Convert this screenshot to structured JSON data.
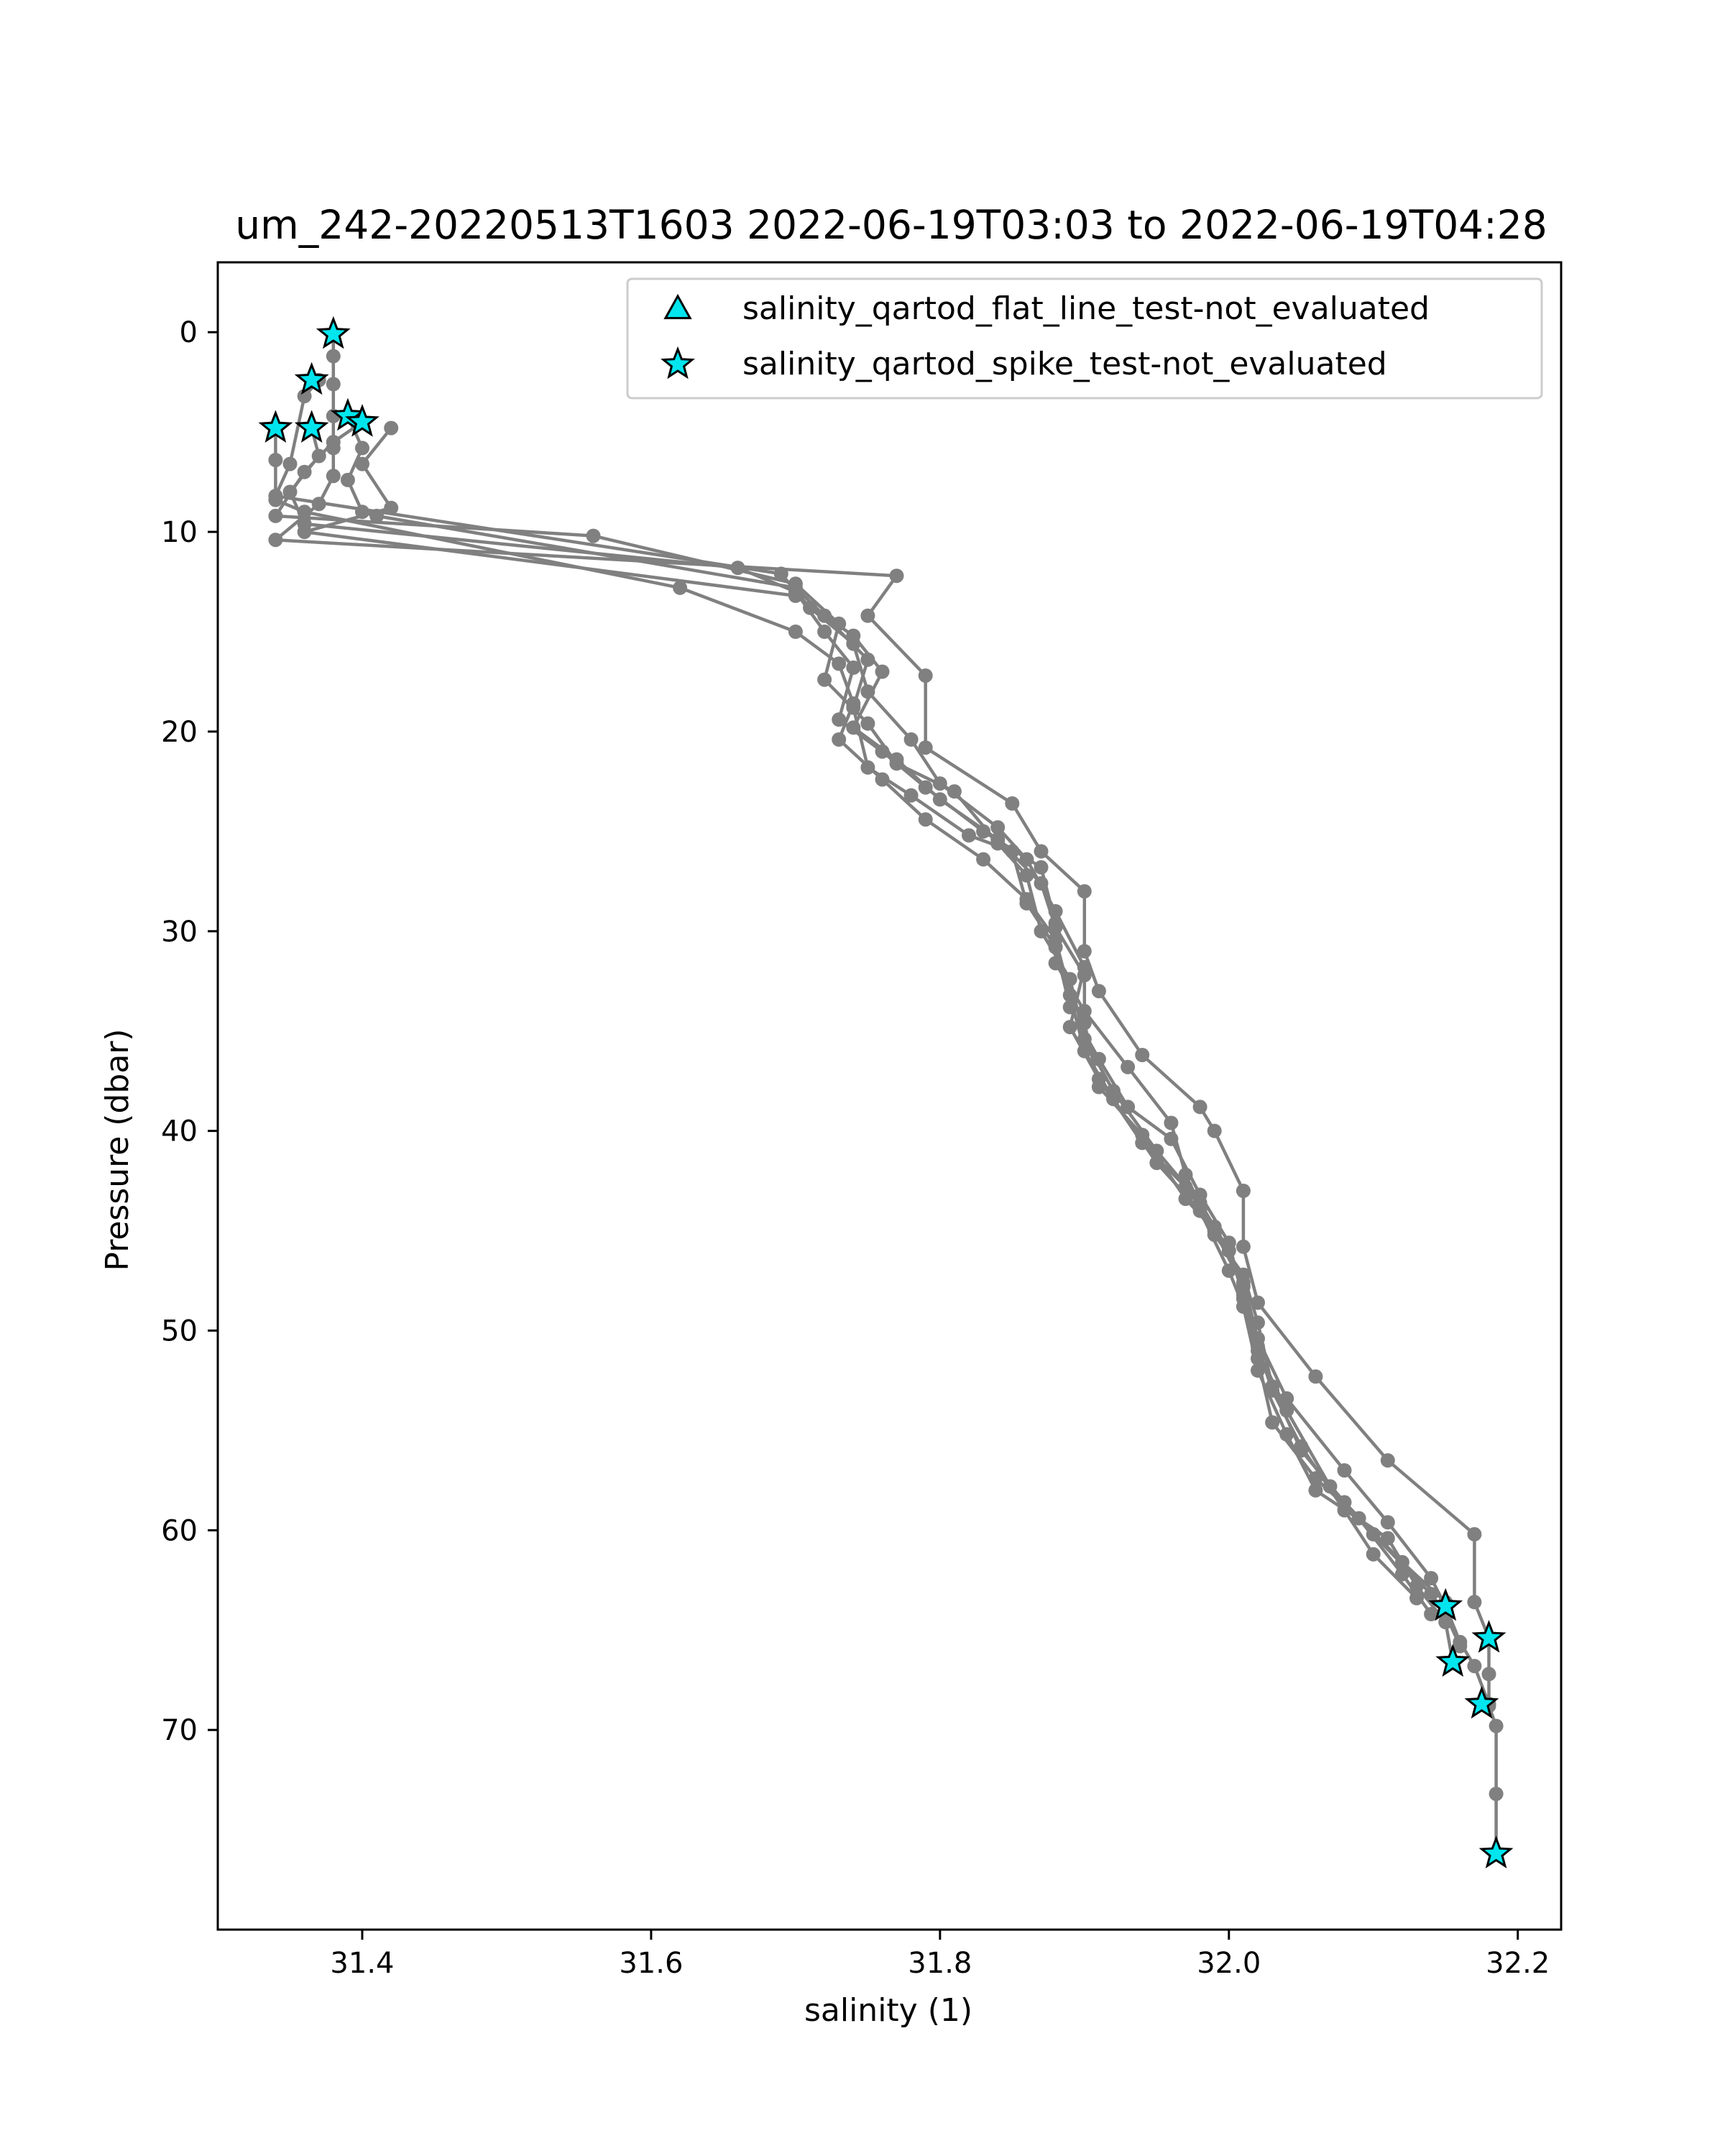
{
  "chart_data": {
    "type": "scatter",
    "title": "um_242-20220513T1603 2022-06-19T03:03 to 2022-06-19T04:28",
    "xlabel": "salinity (1)",
    "ylabel": "Pressure (dbar)",
    "xlim": [
      31.3,
      32.23
    ],
    "ylim": [
      80,
      -3.5
    ],
    "y_inverted": true,
    "xticks": [
      "31.4",
      "31.6",
      "31.8",
      "32.0",
      "32.2"
    ],
    "xtick_values": [
      31.4,
      31.6,
      31.8,
      32.0,
      32.2
    ],
    "yticks": [
      "0",
      "10",
      "20",
      "30",
      "40",
      "50",
      "60",
      "70"
    ],
    "ytick_values": [
      0,
      10,
      20,
      30,
      40,
      50,
      60,
      70
    ],
    "grid": false,
    "legend_position": "top-right",
    "colors": {
      "profile_line": "#808080",
      "marker_fill": "#00e5ee",
      "marker_edge": "#000000"
    },
    "profiles": [
      {
        "points": [
          [
            31.38,
            0.1
          ],
          [
            31.38,
            1.2
          ],
          [
            31.38,
            2.6
          ],
          [
            31.38,
            4.2
          ],
          [
            31.38,
            5.8
          ],
          [
            31.38,
            7.2
          ],
          [
            31.37,
            8.6
          ],
          [
            31.34,
            10.4
          ],
          [
            31.77,
            12.2
          ],
          [
            31.75,
            14.2
          ],
          [
            31.79,
            17.2
          ],
          [
            31.79,
            20.8
          ],
          [
            31.85,
            23.6
          ],
          [
            31.87,
            26.0
          ],
          [
            31.9,
            28.0
          ],
          [
            31.9,
            31.0
          ],
          [
            31.91,
            33.0
          ],
          [
            31.94,
            36.2
          ],
          [
            31.98,
            38.8
          ],
          [
            31.99,
            40.0
          ],
          [
            32.01,
            43.0
          ],
          [
            32.01,
            45.8
          ],
          [
            32.02,
            48.6
          ],
          [
            32.06,
            52.3
          ],
          [
            32.11,
            56.5
          ],
          [
            32.17,
            60.2
          ],
          [
            32.17,
            63.6
          ],
          [
            32.18,
            65.4
          ],
          [
            32.18,
            67.2
          ],
          [
            32.18,
            68.8
          ],
          [
            32.185,
            69.8
          ],
          [
            32.185,
            73.2
          ],
          [
            32.185,
            76.2
          ]
        ]
      },
      {
        "points": [
          [
            31.37,
            2.4
          ],
          [
            31.36,
            3.2
          ],
          [
            31.35,
            6.6
          ],
          [
            31.34,
            8.2
          ],
          [
            31.69,
            12.1
          ],
          [
            31.71,
            13.8
          ],
          [
            31.74,
            15.6
          ],
          [
            31.75,
            18.0
          ],
          [
            31.78,
            20.4
          ],
          [
            31.8,
            22.6
          ],
          [
            31.84,
            24.8
          ],
          [
            31.86,
            26.4
          ],
          [
            31.88,
            29.0
          ],
          [
            31.9,
            31.8
          ],
          [
            31.89,
            34.8
          ],
          [
            31.91,
            37.4
          ],
          [
            31.94,
            40.6
          ],
          [
            31.97,
            42.8
          ],
          [
            31.99,
            44.8
          ],
          [
            32.01,
            47.6
          ],
          [
            32.02,
            50.4
          ],
          [
            32.04,
            53.4
          ],
          [
            32.08,
            57.0
          ],
          [
            32.11,
            59.6
          ],
          [
            32.14,
            62.4
          ],
          [
            32.15,
            63.8
          ],
          [
            32.16,
            65.6
          ],
          [
            32.17,
            66.8
          ],
          [
            32.18,
            68.7
          ]
        ]
      },
      {
        "points": [
          [
            31.4,
            4.5
          ],
          [
            31.38,
            5.5
          ],
          [
            31.36,
            7.0
          ],
          [
            31.34,
            9.2
          ],
          [
            31.56,
            10.2
          ],
          [
            31.7,
            12.6
          ],
          [
            31.73,
            14.6
          ],
          [
            31.72,
            17.4
          ],
          [
            31.75,
            19.6
          ],
          [
            31.77,
            21.6
          ],
          [
            31.81,
            23.0
          ],
          [
            31.84,
            25.6
          ],
          [
            31.86,
            27.2
          ],
          [
            31.87,
            30.0
          ],
          [
            31.89,
            32.4
          ],
          [
            31.9,
            35.4
          ],
          [
            31.92,
            38.0
          ],
          [
            31.95,
            41.0
          ],
          [
            31.98,
            43.6
          ],
          [
            32.0,
            46.0
          ],
          [
            32.01,
            48.2
          ],
          [
            32.02,
            51.0
          ],
          [
            32.04,
            54.0
          ],
          [
            32.07,
            57.8
          ],
          [
            32.1,
            60.2
          ],
          [
            32.14,
            63.2
          ],
          [
            32.15,
            64.2
          ],
          [
            32.16,
            65.8
          ]
        ]
      },
      {
        "points": [
          [
            31.365,
            4.8
          ],
          [
            31.37,
            6.2
          ],
          [
            31.35,
            8.0
          ],
          [
            31.36,
            9.6
          ],
          [
            31.66,
            11.8
          ],
          [
            31.7,
            13.0
          ],
          [
            31.72,
            15.0
          ],
          [
            31.74,
            16.8
          ],
          [
            31.73,
            19.4
          ],
          [
            31.76,
            21.0
          ],
          [
            31.79,
            22.8
          ],
          [
            31.83,
            25.0
          ],
          [
            31.87,
            26.8
          ],
          [
            31.88,
            29.6
          ],
          [
            31.88,
            31.6
          ],
          [
            31.9,
            34.0
          ],
          [
            31.93,
            36.8
          ],
          [
            31.96,
            39.6
          ],
          [
            31.97,
            42.2
          ],
          [
            31.99,
            45.2
          ],
          [
            32.01,
            47.2
          ],
          [
            32.02,
            49.6
          ],
          [
            32.03,
            52.8
          ],
          [
            32.05,
            56.0
          ],
          [
            32.08,
            58.6
          ],
          [
            32.12,
            61.6
          ],
          [
            32.15,
            63.6
          ]
        ]
      },
      {
        "points": [
          [
            31.34,
            4.8
          ],
          [
            31.34,
            6.4
          ],
          [
            31.34,
            8.4
          ],
          [
            31.36,
            9.0
          ],
          [
            31.62,
            12.8
          ],
          [
            31.7,
            15.0
          ],
          [
            31.73,
            16.6
          ],
          [
            31.74,
            18.6
          ],
          [
            31.73,
            20.4
          ],
          [
            31.76,
            22.4
          ],
          [
            31.79,
            24.4
          ],
          [
            31.83,
            26.4
          ],
          [
            31.86,
            28.4
          ],
          [
            31.88,
            30.4
          ],
          [
            31.89,
            33.2
          ],
          [
            31.9,
            36.0
          ],
          [
            31.92,
            38.4
          ],
          [
            31.95,
            41.6
          ],
          [
            31.98,
            44.0
          ],
          [
            32.0,
            47.0
          ],
          [
            32.01,
            48.8
          ],
          [
            32.02,
            52.0
          ],
          [
            32.04,
            55.2
          ],
          [
            32.06,
            58.0
          ],
          [
            32.11,
            60.4
          ],
          [
            32.13,
            62.8
          ],
          [
            32.15,
            64.6
          ],
          [
            32.155,
            66.6
          ]
        ]
      },
      {
        "points": [
          [
            31.39,
            4.2
          ],
          [
            31.4,
            5.8
          ],
          [
            31.39,
            7.4
          ],
          [
            31.4,
            9.0
          ],
          [
            31.41,
            9.2
          ],
          [
            31.7,
            12.8
          ],
          [
            31.72,
            14.2
          ],
          [
            31.75,
            16.4
          ],
          [
            31.74,
            18.8
          ],
          [
            31.75,
            21.8
          ],
          [
            31.78,
            23.2
          ],
          [
            31.82,
            25.2
          ],
          [
            31.85,
            26.0
          ],
          [
            31.86,
            28.6
          ],
          [
            31.88,
            30.8
          ],
          [
            31.89,
            33.8
          ],
          [
            31.91,
            36.4
          ],
          [
            31.93,
            38.8
          ],
          [
            31.96,
            40.4
          ],
          [
            31.98,
            43.2
          ],
          [
            32.0,
            45.6
          ],
          [
            32.01,
            48.4
          ],
          [
            32.02,
            51.4
          ],
          [
            32.03,
            54.6
          ],
          [
            32.06,
            57.4
          ],
          [
            32.09,
            59.4
          ],
          [
            32.12,
            62.2
          ],
          [
            32.14,
            64.2
          ]
        ]
      },
      {
        "points": [
          [
            31.42,
            4.8
          ],
          [
            31.4,
            6.6
          ],
          [
            31.42,
            8.8
          ],
          [
            31.36,
            10.0
          ],
          [
            31.7,
            13.2
          ],
          [
            31.74,
            15.2
          ],
          [
            31.76,
            17.0
          ],
          [
            31.74,
            19.8
          ],
          [
            31.77,
            21.4
          ],
          [
            31.8,
            23.4
          ],
          [
            31.84,
            25.4
          ],
          [
            31.87,
            27.6
          ],
          [
            31.88,
            29.8
          ],
          [
            31.9,
            32.2
          ],
          [
            31.9,
            34.6
          ],
          [
            31.91,
            37.8
          ],
          [
            31.94,
            40.2
          ],
          [
            31.97,
            43.4
          ],
          [
            31.99,
            45.0
          ],
          [
            32.01,
            47.8
          ],
          [
            32.02,
            50.8
          ],
          [
            32.03,
            53.0
          ],
          [
            32.05,
            55.8
          ],
          [
            32.08,
            59.0
          ],
          [
            32.1,
            61.2
          ],
          [
            32.13,
            63.4
          ]
        ]
      }
    ],
    "series": [
      {
        "name": "salinity_qartod_flat_line_test-not_evaluated",
        "marker": "triangle",
        "points": []
      },
      {
        "name": "salinity_qartod_spike_test-not_evaluated",
        "marker": "star",
        "points": [
          [
            31.38,
            0.1
          ],
          [
            31.365,
            2.4
          ],
          [
            31.39,
            4.2
          ],
          [
            31.4,
            4.5
          ],
          [
            31.34,
            4.8
          ],
          [
            31.365,
            4.8
          ],
          [
            32.15,
            63.8
          ],
          [
            32.18,
            65.4
          ],
          [
            32.155,
            66.6
          ],
          [
            32.175,
            68.7
          ],
          [
            32.185,
            76.2
          ]
        ]
      }
    ]
  }
}
